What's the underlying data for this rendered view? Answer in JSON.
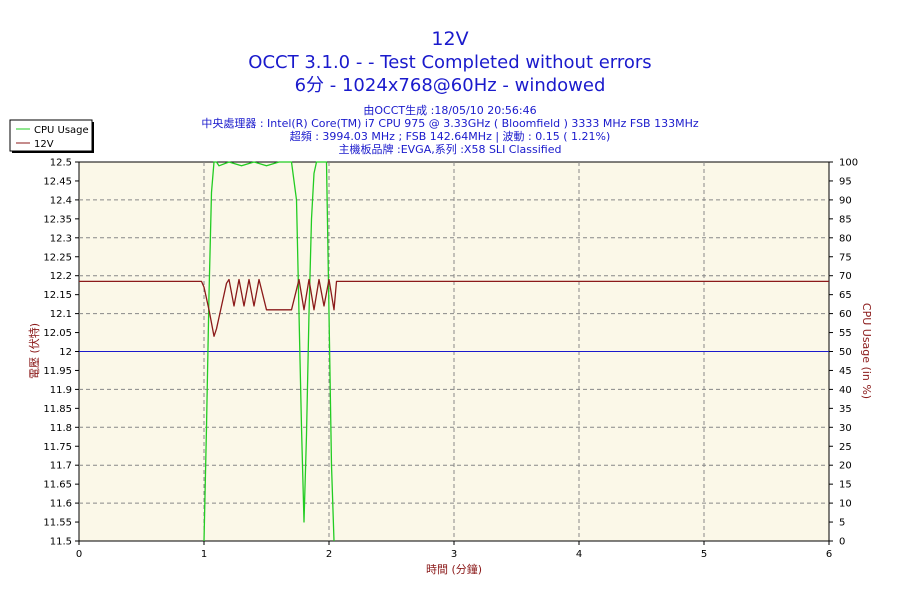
{
  "chart_data": {
    "type": "line",
    "title": "12V",
    "subtitle_lines": [
      "OCCT 3.1.0 -  - Test Completed without errors",
      "6分 - 1024x768@60Hz - windowed"
    ],
    "info_lines": [
      "由OCCT生成 :18/05/10 20:56:46",
      "中央處理器 : Intel(R) Core(TM) i7 CPU 975 @ 3.33GHz ( Bloomfield ) 3333 MHz FSB 133MHz",
      "超頻 : 3994.03 MHz ; FSB 142.64MHz | 波動 : 0.15 ( 1.21%)",
      "主機板品牌 :EVGA,系列 :X58 SLI Classified"
    ],
    "xlabel": "時間 (分鐘)",
    "ylabel": "電壓 (伏特)",
    "y2label": "CPU Usage (in %)",
    "xlim": [
      0,
      6
    ],
    "ylim": [
      11.5,
      12.5
    ],
    "y2lim": [
      0,
      100
    ],
    "x_ticks": [
      "0",
      "1",
      "2",
      "3",
      "4",
      "5",
      "6"
    ],
    "y_ticks": [
      "11.5",
      "11.55",
      "11.6",
      "11.65",
      "11.7",
      "11.75",
      "11.8",
      "11.85",
      "11.9",
      "11.95",
      "12",
      "12.05",
      "12.1",
      "12.15",
      "12.2",
      "12.25",
      "12.3",
      "12.35",
      "12.4",
      "12.45",
      "12.5"
    ],
    "y2_ticks": [
      "0",
      "5",
      "10",
      "15",
      "20",
      "25",
      "30",
      "35",
      "40",
      "45",
      "50",
      "55",
      "60",
      "65",
      "70",
      "75",
      "80",
      "85",
      "90",
      "95",
      "100"
    ],
    "grid": true,
    "legend_position": "top-left",
    "reference_line": {
      "y": 12.0,
      "color": "#1a1acc"
    },
    "series": [
      {
        "name": "CPU Usage",
        "axis": "right",
        "color": "#22cc22",
        "x": [
          1.0,
          1.02,
          1.04,
          1.06,
          1.08,
          1.1,
          1.12,
          1.2,
          1.3,
          1.4,
          1.5,
          1.6,
          1.7,
          1.74,
          1.76,
          1.78,
          1.8,
          1.82,
          1.84,
          1.86,
          1.88,
          1.9,
          1.92,
          1.95,
          1.98,
          2.0,
          2.02,
          2.04
        ],
        "values": [
          0,
          30,
          65,
          92,
          100,
          100,
          99,
          100,
          99,
          100,
          99,
          100,
          100,
          90,
          60,
          30,
          5,
          28,
          60,
          85,
          97,
          100,
          100,
          100,
          100,
          60,
          20,
          0
        ]
      },
      {
        "name": "12V",
        "axis": "left",
        "color": "#8b1a1a",
        "x": [
          0,
          0.98,
          1.0,
          1.04,
          1.08,
          1.1,
          1.14,
          1.18,
          1.2,
          1.24,
          1.28,
          1.32,
          1.36,
          1.4,
          1.44,
          1.5,
          1.6,
          1.7,
          1.76,
          1.8,
          1.84,
          1.88,
          1.92,
          1.96,
          2.0,
          2.04,
          2.06,
          2.1,
          3,
          4,
          5,
          6
        ],
        "values": [
          12.185,
          12.185,
          12.17,
          12.11,
          12.04,
          12.06,
          12.12,
          12.18,
          12.19,
          12.12,
          12.19,
          12.12,
          12.19,
          12.12,
          12.19,
          12.11,
          12.11,
          12.11,
          12.19,
          12.11,
          12.19,
          12.11,
          12.19,
          12.12,
          12.19,
          12.11,
          12.185,
          12.185,
          12.185,
          12.185,
          12.185,
          12.185
        ]
      }
    ]
  }
}
